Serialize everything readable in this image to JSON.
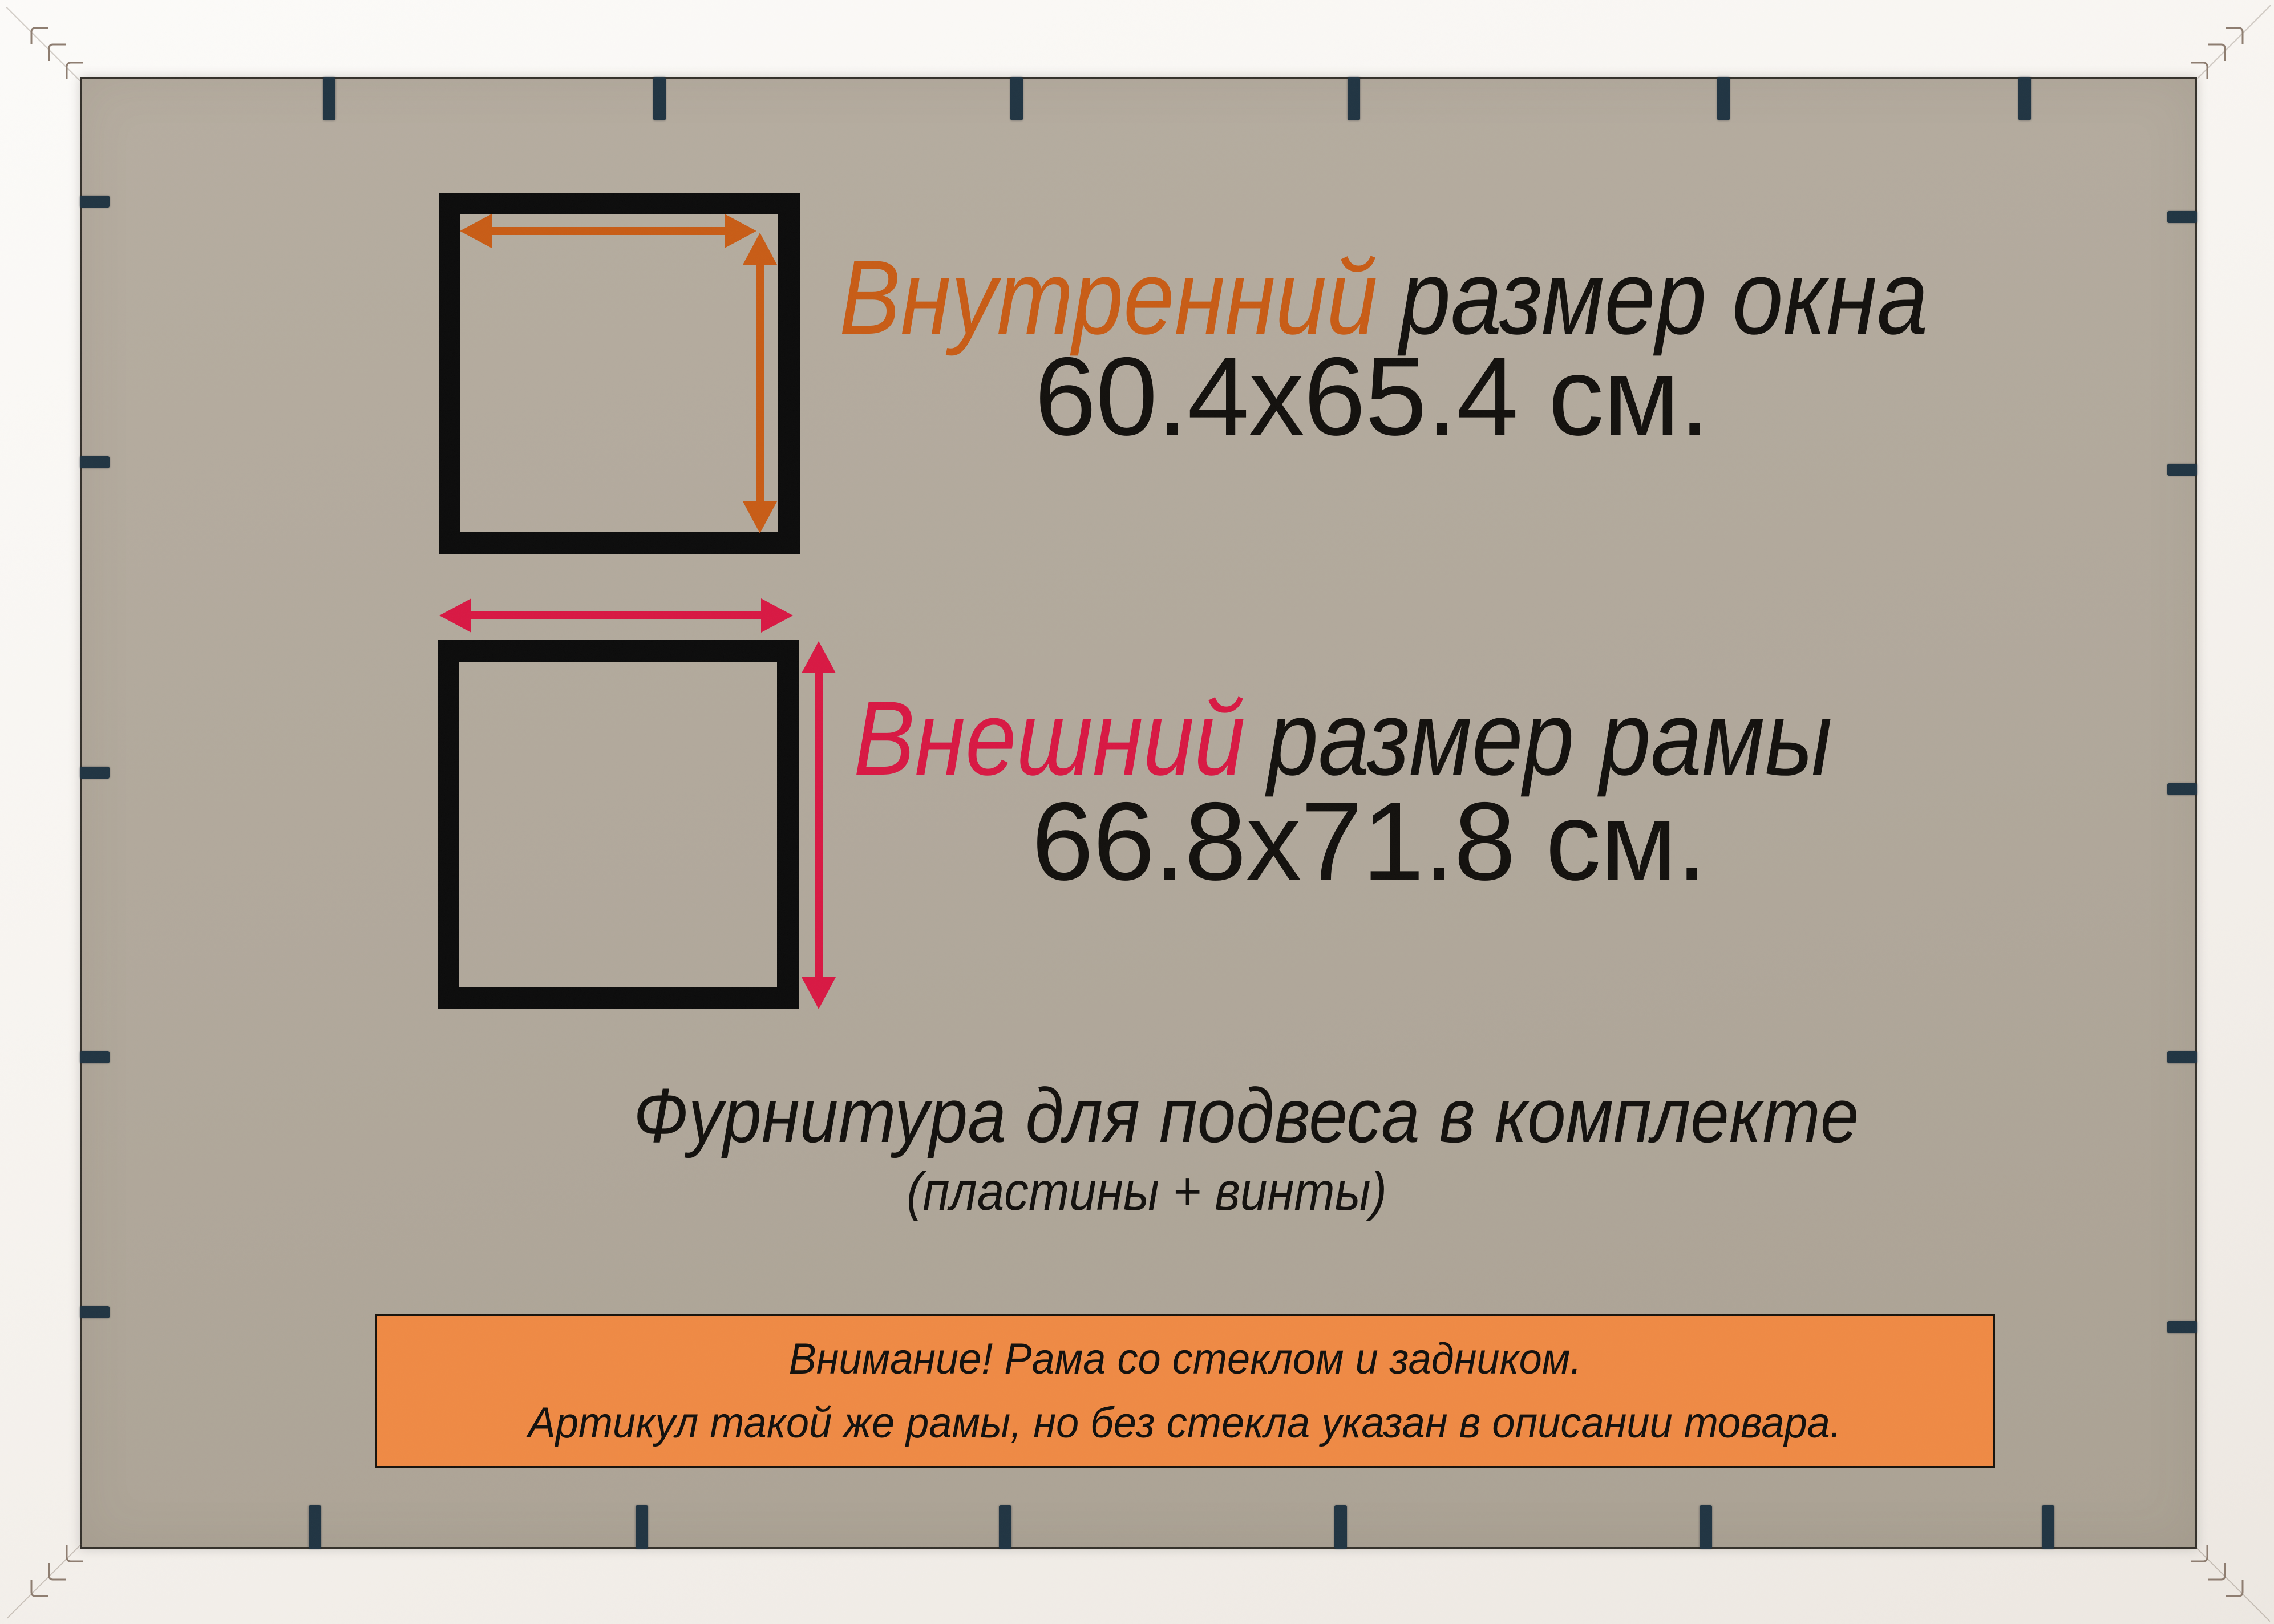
{
  "product_card": {
    "inner_size": {
      "label_highlight": "Внутренний",
      "label_rest": "размер окна",
      "value": "60.4x65.4 см."
    },
    "outer_size": {
      "label_highlight": "Внешний",
      "label_rest": "размер рамы",
      "value": "66.8x71.8 см."
    },
    "hardware_note": {
      "title": "Фурнитура для подвеса в комплекте",
      "subtitle": "(пластины + винты)"
    },
    "notice_banner": {
      "line1": "Внимание! Рама со стеклом и задником.",
      "line2": "Артикул такой же рамы, но без стекла указан в описании товара."
    },
    "colors": {
      "inner_accent": "#c85c16",
      "outer_accent": "#d81843",
      "banner_fill": "#f08a44",
      "backing": "#b1a89b",
      "frame_white": "#f8f5f1",
      "clip": "#203442",
      "text_black": "#12100d"
    },
    "clips": {
      "top_x": [
        577,
        1156,
        1782,
        2373,
        3021,
        3549
      ],
      "bottom_x": [
        552,
        1125,
        1762,
        2350,
        2990,
        3590
      ],
      "left_y": [
        353,
        810,
        1354,
        1853,
        2300
      ],
      "right_y": [
        380,
        823,
        1383,
        1853,
        2326
      ]
    }
  }
}
